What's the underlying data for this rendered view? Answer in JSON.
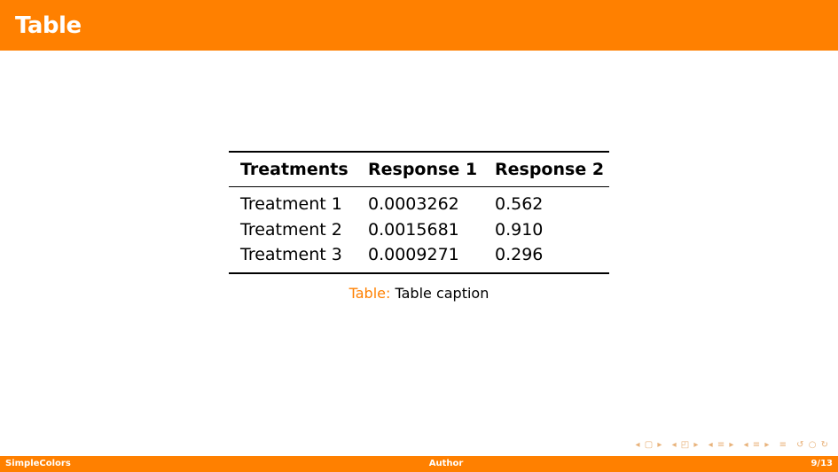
{
  "slide": {
    "title": "Table"
  },
  "table": {
    "headers": [
      "Treatments",
      "Response 1",
      "Response 2"
    ],
    "rows": [
      [
        "Treatment 1",
        "0.0003262",
        "0.562"
      ],
      [
        "Treatment 2",
        "0.0015681",
        "0.910"
      ],
      [
        "Treatment 3",
        "0.0009271",
        "0.296"
      ]
    ],
    "caption_label": "Table:",
    "caption_text": "Table caption"
  },
  "footer": {
    "left": "SimpleColors",
    "center": "Author",
    "right": "9/13"
  },
  "colors": {
    "accent": "#ff8000"
  }
}
